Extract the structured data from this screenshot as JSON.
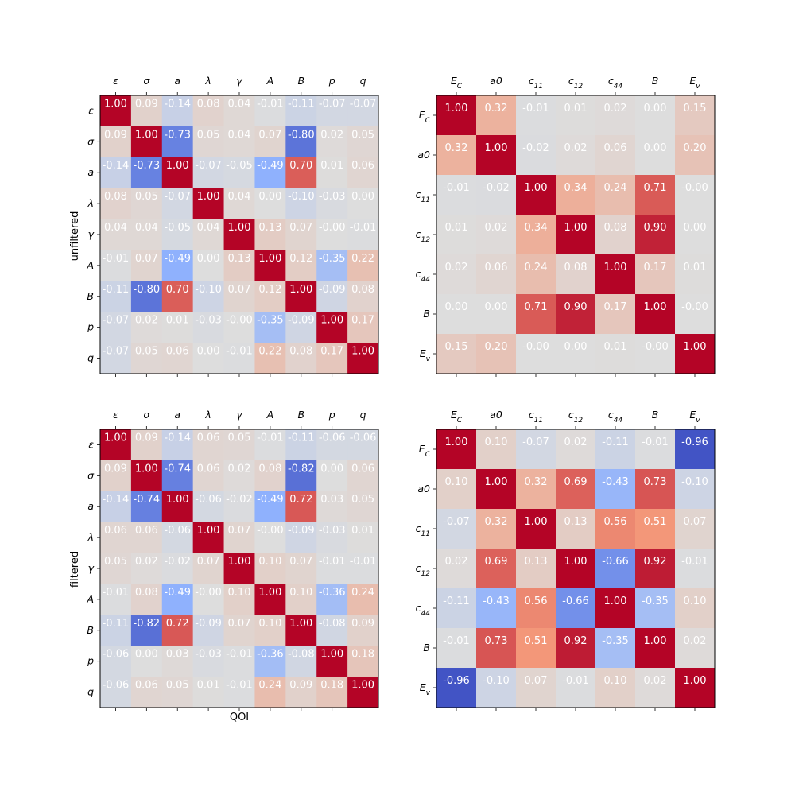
{
  "figure": {
    "row_labels": [
      "unfiltered",
      "filtered"
    ],
    "xlabel": "QOI"
  },
  "chart_data": [
    {
      "type": "heatmap",
      "title": "",
      "ylabel": "unfiltered",
      "xlabel": "",
      "colormap": "coolwarm",
      "vmin": -1,
      "vmax": 1,
      "labels": [
        "ε",
        "σ",
        "a",
        "λ",
        "γ",
        "A",
        "B",
        "p",
        "q"
      ],
      "labels_html": [
        "ε",
        "σ",
        "a",
        "λ",
        "γ",
        "A",
        "B",
        "p",
        "q"
      ],
      "values": [
        [
          1.0,
          0.09,
          -0.14,
          0.08,
          0.04,
          -0.01,
          -0.11,
          -0.07,
          -0.07
        ],
        [
          0.09,
          1.0,
          -0.73,
          0.05,
          0.04,
          0.07,
          -0.8,
          0.02,
          0.05
        ],
        [
          -0.14,
          -0.73,
          1.0,
          -0.07,
          -0.05,
          -0.49,
          0.7,
          0.01,
          0.06
        ],
        [
          0.08,
          0.05,
          -0.07,
          1.0,
          0.04,
          0.0,
          -0.1,
          -0.03,
          0.0
        ],
        [
          0.04,
          0.04,
          -0.05,
          0.04,
          1.0,
          0.13,
          0.07,
          -0.0,
          -0.01
        ],
        [
          -0.01,
          0.07,
          -0.49,
          0.0,
          0.13,
          1.0,
          0.12,
          -0.35,
          0.22
        ],
        [
          -0.11,
          -0.8,
          0.7,
          -0.1,
          0.07,
          0.12,
          1.0,
          -0.09,
          0.08
        ],
        [
          -0.07,
          0.02,
          0.01,
          -0.03,
          -0.0,
          -0.35,
          -0.09,
          1.0,
          0.17
        ],
        [
          -0.07,
          0.05,
          0.06,
          0.0,
          -0.01,
          0.22,
          0.08,
          0.17,
          1.0
        ]
      ],
      "value_labels": [
        [
          "1.00",
          "0.09",
          "-0.14",
          "0.08",
          "0.04",
          "-0.01",
          "-0.11",
          "-0.07",
          "-0.07"
        ],
        [
          "0.09",
          "1.00",
          "-0.73",
          "0.05",
          "0.04",
          "0.07",
          "-0.80",
          "0.02",
          "0.05"
        ],
        [
          "-0.14",
          "-0.73",
          "1.00",
          "-0.07",
          "-0.05",
          "-0.49",
          "0.70",
          "0.01",
          "0.06"
        ],
        [
          "0.08",
          "0.05",
          "-0.07",
          "1.00",
          "0.04",
          "0.00",
          "-0.10",
          "-0.03",
          "0.00"
        ],
        [
          "0.04",
          "0.04",
          "-0.05",
          "0.04",
          "1.00",
          "0.13",
          "0.07",
          "-0.00",
          "-0.01"
        ],
        [
          "-0.01",
          "0.07",
          "-0.49",
          "0.00",
          "0.13",
          "1.00",
          "0.12",
          "-0.35",
          "0.22"
        ],
        [
          "-0.11",
          "-0.80",
          "0.70",
          "-0.10",
          "0.07",
          "0.12",
          "1.00",
          "-0.09",
          "0.08"
        ],
        [
          "-0.07",
          "0.02",
          "0.01",
          "-0.03",
          "-0.00",
          "-0.35",
          "-0.09",
          "1.00",
          "0.17"
        ],
        [
          "-0.07",
          "0.05",
          "0.06",
          "0.00",
          "-0.01",
          "0.22",
          "0.08",
          "0.17",
          "1.00"
        ]
      ]
    },
    {
      "type": "heatmap",
      "title": "",
      "ylabel": "",
      "xlabel": "",
      "colormap": "coolwarm",
      "vmin": -1,
      "vmax": 1,
      "labels": [
        "E_C",
        "a0",
        "c_11",
        "c_12",
        "c_44",
        "B",
        "E_v"
      ],
      "labels_html": [
        "E<tspan baseline-shift='sub' font-size='9'>C</tspan>",
        "a0",
        "c<tspan baseline-shift='sub' font-size='9'>11</tspan>",
        "c<tspan baseline-shift='sub' font-size='9'>12</tspan>",
        "c<tspan baseline-shift='sub' font-size='9'>44</tspan>",
        "B",
        "E<tspan baseline-shift='sub' font-size='9'>v</tspan>"
      ],
      "values": [
        [
          1.0,
          0.32,
          -0.01,
          0.01,
          0.02,
          0.0,
          0.15
        ],
        [
          0.32,
          1.0,
          -0.02,
          0.02,
          0.06,
          0.0,
          0.2
        ],
        [
          -0.01,
          -0.02,
          1.0,
          0.34,
          0.24,
          0.71,
          -0.0
        ],
        [
          0.01,
          0.02,
          0.34,
          1.0,
          0.08,
          0.9,
          0.0
        ],
        [
          0.02,
          0.06,
          0.24,
          0.08,
          1.0,
          0.17,
          0.01
        ],
        [
          0.0,
          0.0,
          0.71,
          0.9,
          0.17,
          1.0,
          -0.0
        ],
        [
          0.15,
          0.2,
          -0.0,
          0.0,
          0.01,
          -0.0,
          1.0
        ]
      ],
      "value_labels": [
        [
          "1.00",
          "0.32",
          "-0.01",
          "0.01",
          "0.02",
          "0.00",
          "0.15"
        ],
        [
          "0.32",
          "1.00",
          "-0.02",
          "0.02",
          "0.06",
          "0.00",
          "0.20"
        ],
        [
          "-0.01",
          "-0.02",
          "1.00",
          "0.34",
          "0.24",
          "0.71",
          "-0.00"
        ],
        [
          "0.01",
          "0.02",
          "0.34",
          "1.00",
          "0.08",
          "0.90",
          "0.00"
        ],
        [
          "0.02",
          "0.06",
          "0.24",
          "0.08",
          "1.00",
          "0.17",
          "0.01"
        ],
        [
          "0.00",
          "0.00",
          "0.71",
          "0.90",
          "0.17",
          "1.00",
          "-0.00"
        ],
        [
          "0.15",
          "0.20",
          "-0.00",
          "0.00",
          "0.01",
          "-0.00",
          "1.00"
        ]
      ]
    },
    {
      "type": "heatmap",
      "title": "",
      "ylabel": "filtered",
      "xlabel": "QOI",
      "colormap": "coolwarm",
      "vmin": -1,
      "vmax": 1,
      "labels": [
        "ε",
        "σ",
        "a",
        "λ",
        "γ",
        "A",
        "B",
        "p",
        "q"
      ],
      "labels_html": [
        "ε",
        "σ",
        "a",
        "λ",
        "γ",
        "A",
        "B",
        "p",
        "q"
      ],
      "values": [
        [
          1.0,
          0.09,
          -0.14,
          0.06,
          0.05,
          -0.01,
          -0.11,
          -0.06,
          -0.06
        ],
        [
          0.09,
          1.0,
          -0.74,
          0.06,
          0.02,
          0.08,
          -0.82,
          0.0,
          0.06
        ],
        [
          -0.14,
          -0.74,
          1.0,
          -0.06,
          -0.02,
          -0.49,
          0.72,
          0.03,
          0.05
        ],
        [
          0.06,
          0.06,
          -0.06,
          1.0,
          0.07,
          -0.0,
          -0.09,
          -0.03,
          0.01
        ],
        [
          0.05,
          0.02,
          -0.02,
          0.07,
          1.0,
          0.1,
          0.07,
          -0.01,
          -0.01
        ],
        [
          -0.01,
          0.08,
          -0.49,
          -0.0,
          0.1,
          1.0,
          0.1,
          -0.36,
          0.24
        ],
        [
          -0.11,
          -0.82,
          0.72,
          -0.09,
          0.07,
          0.1,
          1.0,
          -0.08,
          0.09
        ],
        [
          -0.06,
          0.0,
          0.03,
          -0.03,
          -0.01,
          -0.36,
          -0.08,
          1.0,
          0.18
        ],
        [
          -0.06,
          0.06,
          0.05,
          0.01,
          -0.01,
          0.24,
          0.09,
          0.18,
          1.0
        ]
      ],
      "value_labels": [
        [
          "1.00",
          "0.09",
          "-0.14",
          "0.06",
          "0.05",
          "-0.01",
          "-0.11",
          "-0.06",
          "-0.06"
        ],
        [
          "0.09",
          "1.00",
          "-0.74",
          "0.06",
          "0.02",
          "0.08",
          "-0.82",
          "0.00",
          "0.06"
        ],
        [
          "-0.14",
          "-0.74",
          "1.00",
          "-0.06",
          "-0.02",
          "-0.49",
          "0.72",
          "0.03",
          "0.05"
        ],
        [
          "0.06",
          "0.06",
          "-0.06",
          "1.00",
          "0.07",
          "-0.00",
          "-0.09",
          "-0.03",
          "0.01"
        ],
        [
          "0.05",
          "0.02",
          "-0.02",
          "0.07",
          "1.00",
          "0.10",
          "0.07",
          "-0.01",
          "-0.01"
        ],
        [
          "-0.01",
          "0.08",
          "-0.49",
          "-0.00",
          "0.10",
          "1.00",
          "0.10",
          "-0.36",
          "0.24"
        ],
        [
          "-0.11",
          "-0.82",
          "0.72",
          "-0.09",
          "0.07",
          "0.10",
          "1.00",
          "-0.08",
          "0.09"
        ],
        [
          "-0.06",
          "0.00",
          "0.03",
          "-0.03",
          "-0.01",
          "-0.36",
          "-0.08",
          "1.00",
          "0.18"
        ],
        [
          "-0.06",
          "0.06",
          "0.05",
          "0.01",
          "-0.01",
          "0.24",
          "0.09",
          "0.18",
          "1.00"
        ]
      ]
    },
    {
      "type": "heatmap",
      "title": "",
      "ylabel": "",
      "xlabel": "",
      "colormap": "coolwarm",
      "vmin": -1,
      "vmax": 1,
      "labels": [
        "E_C",
        "a0",
        "c_11",
        "c_12",
        "c_44",
        "B",
        "E_v"
      ],
      "labels_html": [
        "E<tspan baseline-shift='sub' font-size='9'>C</tspan>",
        "a0",
        "c<tspan baseline-shift='sub' font-size='9'>11</tspan>",
        "c<tspan baseline-shift='sub' font-size='9'>12</tspan>",
        "c<tspan baseline-shift='sub' font-size='9'>44</tspan>",
        "B",
        "E<tspan baseline-shift='sub' font-size='9'>v</tspan>"
      ],
      "values": [
        [
          1.0,
          0.1,
          -0.07,
          0.02,
          -0.11,
          -0.01,
          -0.96
        ],
        [
          0.1,
          1.0,
          0.32,
          0.69,
          -0.43,
          0.73,
          -0.1
        ],
        [
          -0.07,
          0.32,
          1.0,
          0.13,
          0.56,
          0.51,
          0.07
        ],
        [
          0.02,
          0.69,
          0.13,
          1.0,
          -0.66,
          0.92,
          -0.01
        ],
        [
          -0.11,
          -0.43,
          0.56,
          -0.66,
          1.0,
          -0.35,
          0.1
        ],
        [
          -0.01,
          0.73,
          0.51,
          0.92,
          -0.35,
          1.0,
          0.02
        ],
        [
          -0.96,
          -0.1,
          0.07,
          -0.01,
          0.1,
          0.02,
          1.0
        ]
      ],
      "value_labels": [
        [
          "1.00",
          "0.10",
          "-0.07",
          "0.02",
          "-0.11",
          "-0.01",
          "-0.96"
        ],
        [
          "0.10",
          "1.00",
          "0.32",
          "0.69",
          "-0.43",
          "0.73",
          "-0.10"
        ],
        [
          "-0.07",
          "0.32",
          "1.00",
          "0.13",
          "0.56",
          "0.51",
          "0.07"
        ],
        [
          "0.02",
          "0.69",
          "0.13",
          "1.00",
          "-0.66",
          "0.92",
          "-0.01"
        ],
        [
          "-0.11",
          "-0.43",
          "0.56",
          "-0.66",
          "1.00",
          "-0.35",
          "0.10"
        ],
        [
          "-0.01",
          "0.73",
          "0.51",
          "0.92",
          "-0.35",
          "1.00",
          "0.02"
        ],
        [
          "-0.96",
          "-0.10",
          "0.07",
          "-0.01",
          "0.10",
          "0.02",
          "1.00"
        ]
      ]
    }
  ]
}
